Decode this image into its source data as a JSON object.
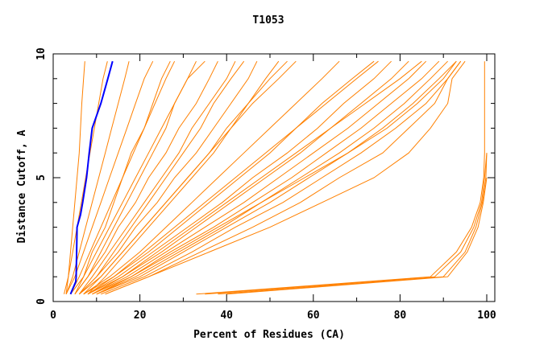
{
  "chart_data": {
    "type": "line",
    "title": "T1053",
    "xlabel": "Percent of Residues (CA)",
    "ylabel": "Distance Cutoff, A",
    "xlim": [
      0,
      100
    ],
    "ylim": [
      0,
      10
    ],
    "x_ticks": [
      0,
      20,
      40,
      60,
      80,
      100
    ],
    "y_ticks": [
      0,
      5,
      10
    ],
    "grid": false,
    "colors": {
      "highlight": "#0000ff",
      "others": "#ff8000",
      "axes": "#000000"
    },
    "y_levels": [
      0.3,
      1,
      2,
      3,
      4,
      5,
      6,
      7,
      8,
      9,
      9.7
    ],
    "highlight_series": {
      "y": [
        0.3,
        0.8,
        1,
        2,
        3,
        3.5,
        4,
        5,
        6,
        7,
        8,
        9,
        9.7
      ],
      "x": [
        4,
        5.2,
        5.3,
        5.4,
        5.5,
        6.3,
        6.8,
        7.7,
        8.3,
        9,
        11,
        12.6,
        13.7
      ]
    },
    "series_x": [
      [
        3,
        3.5,
        4,
        4.5,
        5,
        5.5,
        6,
        6.3,
        6.6,
        7,
        7.3
      ],
      [
        2.5,
        3.5,
        4.5,
        5.5,
        6.5,
        7.5,
        8.5,
        9.5,
        10.5,
        11.5,
        12.5
      ],
      [
        3,
        4.5,
        6,
        7.5,
        9,
        10.5,
        12,
        13.5,
        15,
        16.5,
        17.5
      ],
      [
        3,
        5,
        7,
        9,
        11,
        13,
        15,
        17,
        19,
        21,
        23
      ],
      [
        4,
        6,
        8.5,
        11,
        13.5,
        16,
        18.5,
        21,
        23.5,
        26,
        28
      ],
      [
        5,
        7,
        10,
        13,
        16,
        19,
        22,
        25,
        28,
        31,
        33
      ],
      [
        5,
        8,
        12,
        15,
        19,
        22,
        26,
        29,
        33,
        36,
        38
      ],
      [
        6,
        9,
        13,
        17,
        21,
        25,
        29,
        32,
        36,
        40,
        42
      ],
      [
        6,
        10,
        15,
        19,
        24,
        28,
        33,
        37,
        41,
        45,
        47
      ],
      [
        7,
        11,
        16,
        21,
        26,
        31,
        36,
        40,
        45,
        49,
        52
      ],
      [
        4,
        7,
        9,
        12,
        14,
        16,
        18,
        21,
        23,
        25,
        27
      ],
      [
        5,
        8,
        11,
        14,
        17,
        20,
        23,
        26,
        28,
        31,
        35
      ],
      [
        6,
        10,
        14,
        18,
        22,
        26,
        30,
        34,
        37,
        41,
        44
      ],
      [
        8,
        12,
        17,
        22,
        27,
        32,
        37,
        41,
        45,
        50,
        54
      ],
      [
        6,
        11,
        16,
        21,
        26,
        31,
        36,
        41,
        46,
        52,
        56
      ],
      [
        7,
        13,
        20,
        26,
        32,
        38,
        44,
        50,
        56,
        62,
        66
      ],
      [
        7,
        14,
        22,
        29,
        36,
        43,
        50,
        56,
        62,
        69,
        74
      ],
      [
        8,
        15,
        23,
        31,
        39,
        46,
        54,
        61,
        67,
        74,
        78
      ],
      [
        8,
        16,
        25,
        33,
        41,
        49,
        57,
        64,
        71,
        78,
        82
      ],
      [
        9,
        17,
        26,
        35,
        44,
        52,
        60,
        68,
        75,
        82,
        86
      ],
      [
        9,
        18,
        27,
        37,
        46,
        55,
        63,
        71,
        78,
        85,
        89
      ],
      [
        10,
        19,
        29,
        39,
        48,
        57,
        66,
        74,
        81,
        87,
        91
      ],
      [
        10,
        20,
        30,
        40,
        50,
        59,
        68,
        76,
        83,
        89,
        93
      ],
      [
        11,
        21,
        32,
        42,
        53,
        62,
        71,
        79,
        86,
        91,
        94
      ],
      [
        12,
        22,
        34,
        46,
        57,
        66,
        76,
        82,
        88,
        91,
        94
      ],
      [
        12,
        22,
        36,
        50,
        62,
        74,
        82,
        87,
        91,
        92,
        95
      ],
      [
        10,
        18,
        28,
        38,
        48,
        58,
        68,
        77,
        84,
        90,
        93
      ],
      [
        9,
        16,
        24,
        32,
        40,
        48,
        56,
        64,
        72,
        80,
        85
      ],
      [
        8,
        14,
        21,
        28,
        35,
        42,
        49,
        56,
        63,
        70,
        75
      ],
      [
        33,
        87,
        93,
        96.5,
        98.5,
        99.3,
        99.5,
        99.5,
        99.5,
        99.5,
        99.5
      ],
      [
        35,
        88,
        94,
        97,
        98.8,
        99.5,
        100
      ],
      [
        38,
        90,
        95,
        97.5,
        99,
        99.8,
        100
      ],
      [
        40,
        91,
        95.5,
        98,
        99.2,
        100
      ]
    ]
  }
}
